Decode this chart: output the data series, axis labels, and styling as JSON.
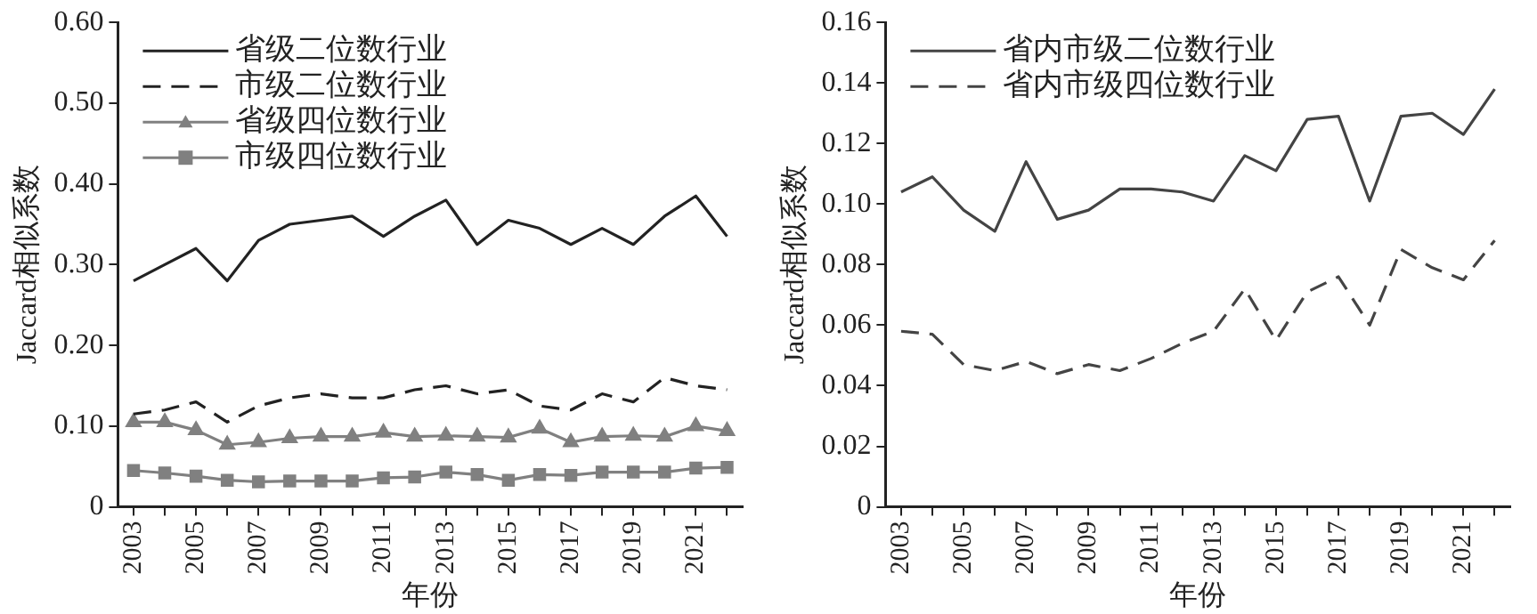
{
  "chart_data": [
    {
      "type": "line",
      "xlabel": "年份",
      "ylabel": "Jaccard相似系数",
      "categories": [
        "2003",
        null,
        "2005",
        null,
        "2007",
        null,
        "2009",
        null,
        "2011",
        null,
        "2013",
        null,
        "2015",
        null,
        "2017",
        null,
        "2019",
        null,
        "2021",
        null
      ],
      "series": [
        {
          "name": "省级二位数行业",
          "color": "#222222",
          "line_style": "solid",
          "marker": "none",
          "values": [
            0.28,
            0.3,
            0.32,
            0.28,
            0.33,
            0.35,
            0.355,
            0.36,
            0.335,
            0.36,
            0.38,
            0.325,
            0.355,
            0.345,
            0.325,
            0.345,
            0.325,
            0.36,
            0.385,
            0.335
          ]
        },
        {
          "name": "市级二位数行业",
          "color": "#222222",
          "line_style": "dashed",
          "marker": "none",
          "values": [
            0.115,
            0.12,
            0.13,
            0.105,
            0.125,
            0.135,
            0.14,
            0.135,
            0.135,
            0.145,
            0.15,
            0.14,
            0.145,
            0.125,
            0.12,
            0.14,
            0.13,
            0.16,
            0.15,
            0.145
          ]
        },
        {
          "name": "省级四位数行业",
          "color": "#808080",
          "line_style": "solid",
          "marker": "triangle",
          "values": [
            0.105,
            0.105,
            0.095,
            0.077,
            0.08,
            0.085,
            0.087,
            0.087,
            0.092,
            0.087,
            0.088,
            0.087,
            0.086,
            0.097,
            0.08,
            0.087,
            0.088,
            0.087,
            0.1,
            0.094
          ]
        },
        {
          "name": "市级四位数行业",
          "color": "#808080",
          "line_style": "solid",
          "marker": "square",
          "values": [
            0.045,
            0.042,
            0.038,
            0.033,
            0.031,
            0.032,
            0.032,
            0.032,
            0.036,
            0.037,
            0.043,
            0.04,
            0.033,
            0.04,
            0.039,
            0.043,
            0.043,
            0.043,
            0.048,
            0.049
          ]
        }
      ],
      "ylim": [
        0,
        0.6
      ],
      "yticks": [
        0,
        {
          "value": 0.1,
          "label": "0.10"
        },
        {
          "value": 0.2,
          "label": "0.20"
        },
        {
          "value": 0.3,
          "label": "0.30"
        },
        {
          "value": 0.4,
          "label": "0.40"
        },
        {
          "value": 0.5,
          "label": "0.50"
        },
        {
          "value": 0.6,
          "label": "0.60"
        }
      ],
      "grid": false,
      "legend": "top left"
    },
    {
      "type": "line",
      "xlabel": "年份",
      "ylabel": "Jaccard相似系数",
      "categories": [
        "2003",
        null,
        "2005",
        null,
        "2007",
        null,
        "2009",
        null,
        "2011",
        null,
        "2013",
        null,
        "2015",
        null,
        "2017",
        null,
        "2019",
        null,
        "2021",
        null
      ],
      "series": [
        {
          "name": "省内市级二位数行业",
          "color": "#444444",
          "line_style": "solid",
          "marker": "none",
          "values": [
            0.104,
            0.109,
            0.098,
            0.091,
            0.114,
            0.095,
            0.098,
            0.105,
            0.105,
            0.104,
            0.101,
            0.116,
            0.111,
            0.128,
            0.129,
            0.101,
            0.129,
            0.13,
            0.123,
            0.138
          ]
        },
        {
          "name": "省内市级四位数行业",
          "color": "#444444",
          "line_style": "dashed",
          "marker": "none",
          "values": [
            0.058,
            0.057,
            0.047,
            0.045,
            0.048,
            0.044,
            0.047,
            0.045,
            0.049,
            0.054,
            0.058,
            0.072,
            0.055,
            0.071,
            0.076,
            0.06,
            0.085,
            0.079,
            0.075,
            0.088
          ]
        }
      ],
      "ylim": [
        0,
        0.16
      ],
      "yticks": [
        0,
        {
          "value": 0.02,
          "label": "0.02"
        },
        {
          "value": 0.04,
          "label": "0.04"
        },
        {
          "value": 0.06,
          "label": "0.06"
        },
        {
          "value": 0.08,
          "label": "0.08"
        },
        {
          "value": 0.1,
          "label": "0.10"
        },
        {
          "value": 0.12,
          "label": "0.12"
        },
        {
          "value": 0.14,
          "label": "0.14"
        },
        {
          "value": 0.16,
          "label": "0.16"
        }
      ],
      "grid": false,
      "legend": "top left"
    }
  ]
}
